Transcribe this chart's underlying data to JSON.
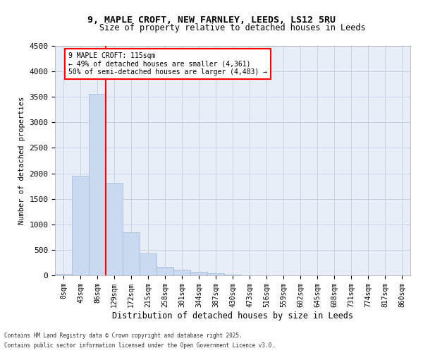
{
  "title_line1": "9, MAPLE CROFT, NEW FARNLEY, LEEDS, LS12 5RU",
  "title_line2": "Size of property relative to detached houses in Leeds",
  "xlabel": "Distribution of detached houses by size in Leeds",
  "ylabel": "Number of detached properties",
  "categories": [
    "0sqm",
    "43sqm",
    "86sqm",
    "129sqm",
    "172sqm",
    "215sqm",
    "258sqm",
    "301sqm",
    "344sqm",
    "387sqm",
    "430sqm",
    "473sqm",
    "516sqm",
    "559sqm",
    "602sqm",
    "645sqm",
    "688sqm",
    "731sqm",
    "774sqm",
    "817sqm",
    "860sqm"
  ],
  "values": [
    30,
    1950,
    3560,
    1820,
    850,
    430,
    165,
    110,
    70,
    40,
    10,
    0,
    0,
    0,
    0,
    0,
    0,
    0,
    0,
    0,
    0
  ],
  "bar_color": "#c9d9f0",
  "bar_edgecolor": "#a0b8d8",
  "vline_x": 2.5,
  "vline_color": "red",
  "annotation_text": "9 MAPLE CROFT: 115sqm\n← 49% of detached houses are smaller (4,361)\n50% of semi-detached houses are larger (4,483) →",
  "annotation_box_color": "#ffffff",
  "annotation_box_edgecolor": "red",
  "ylim": [
    0,
    4500
  ],
  "yticks": [
    0,
    500,
    1000,
    1500,
    2000,
    2500,
    3000,
    3500,
    4000,
    4500
  ],
  "grid_color": "#c8d4e8",
  "bg_color": "#e8eef8",
  "footnote1": "Contains HM Land Registry data © Crown copyright and database right 2025.",
  "footnote2": "Contains public sector information licensed under the Open Government Licence v3.0."
}
